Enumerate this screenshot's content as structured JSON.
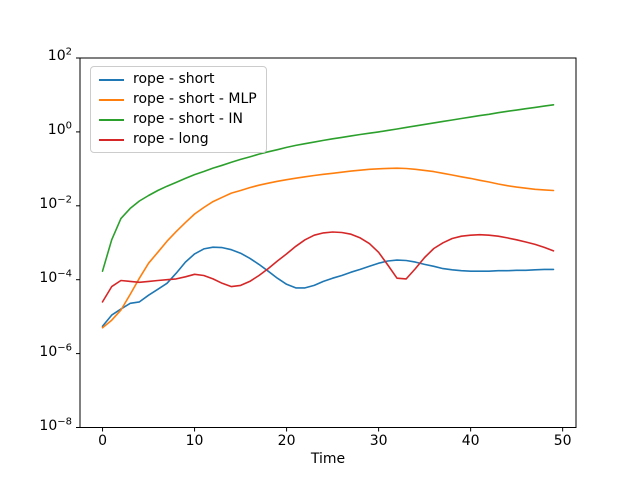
{
  "figure": {
    "background": "#ffffff",
    "spine_color": "#000000",
    "tick_color": "#000000",
    "text_color": "#000000",
    "legend_border_color": "#cccccc"
  },
  "chart_data": {
    "type": "line",
    "title": "",
    "xlabel": "Time",
    "ylabel": "",
    "x_scale": "linear",
    "y_scale": "log",
    "xlim": [
      -2.45,
      51.45
    ],
    "ylim_exponents": [
      -8,
      2
    ],
    "x_ticks": [
      0,
      10,
      20,
      30,
      40,
      50
    ],
    "y_tick_exponents": [
      2,
      0,
      -2,
      -4,
      -6,
      -8
    ],
    "grid": false,
    "legend_position": "upper left",
    "x": [
      0,
      1,
      2,
      3,
      4,
      5,
      6,
      7,
      8,
      9,
      10,
      11,
      12,
      13,
      14,
      15,
      16,
      17,
      18,
      19,
      20,
      21,
      22,
      23,
      24,
      25,
      26,
      27,
      28,
      29,
      30,
      31,
      32,
      33,
      34,
      35,
      36,
      37,
      38,
      39,
      40,
      41,
      42,
      43,
      44,
      45,
      46,
      47,
      48,
      49
    ],
    "series": [
      {
        "name": "rope - short",
        "color": "#1f77b4",
        "values": [
          5.5e-06,
          1.1e-05,
          1.6e-05,
          2.3e-05,
          2.5e-05,
          3.8e-05,
          5.5e-05,
          8e-05,
          0.00015,
          0.0003,
          0.0005,
          0.00068,
          0.00076,
          0.00074,
          0.00065,
          0.00052,
          0.00038,
          0.00026,
          0.00017,
          0.00011,
          7.5e-05,
          6e-05,
          6e-05,
          7e-05,
          9e-05,
          0.00011,
          0.00013,
          0.00016,
          0.00019,
          0.00023,
          0.00028,
          0.00032,
          0.00034,
          0.00033,
          0.0003,
          0.00026,
          0.00023,
          0.0002,
          0.000185,
          0.000175,
          0.00017,
          0.00017,
          0.00017,
          0.000175,
          0.000175,
          0.00018,
          0.00018,
          0.000185,
          0.00019,
          0.00019
        ]
      },
      {
        "name": "rope - short - MLP",
        "color": "#ff7f0e",
        "values": [
          5e-06,
          8e-06,
          1.5e-05,
          4e-05,
          0.00011,
          0.00028,
          0.00055,
          0.0011,
          0.002,
          0.0035,
          0.006,
          0.009,
          0.013,
          0.017,
          0.022,
          0.026,
          0.031,
          0.036,
          0.041,
          0.046,
          0.051,
          0.056,
          0.061,
          0.066,
          0.071,
          0.076,
          0.081,
          0.087,
          0.092,
          0.097,
          0.1,
          0.103,
          0.104,
          0.102,
          0.097,
          0.091,
          0.084,
          0.076,
          0.068,
          0.061,
          0.055,
          0.049,
          0.044,
          0.039,
          0.035,
          0.032,
          0.03,
          0.028,
          0.027,
          0.026
        ]
      },
      {
        "name": "rope - short - IN",
        "color": "#2ca02c",
        "values": [
          0.00017,
          0.0012,
          0.0045,
          0.0085,
          0.0135,
          0.019,
          0.026,
          0.034,
          0.043,
          0.055,
          0.07,
          0.085,
          0.105,
          0.125,
          0.15,
          0.18,
          0.21,
          0.25,
          0.29,
          0.33,
          0.38,
          0.43,
          0.48,
          0.53,
          0.59,
          0.65,
          0.71,
          0.78,
          0.85,
          0.92,
          1.0,
          1.1,
          1.2,
          1.32,
          1.45,
          1.6,
          1.75,
          1.92,
          2.1,
          2.3,
          2.52,
          2.76,
          3.0,
          3.3,
          3.6,
          3.9,
          4.25,
          4.6,
          5.0,
          5.4
        ]
      },
      {
        "name": "rope - long",
        "color": "#d62728",
        "values": [
          2.5e-05,
          6.5e-05,
          9.5e-05,
          9e-05,
          8.5e-05,
          9e-05,
          9.5e-05,
          0.0001,
          0.000105,
          0.00012,
          0.00014,
          0.00013,
          0.000105,
          8e-05,
          6.5e-05,
          7e-05,
          9e-05,
          0.00013,
          0.0002,
          0.00032,
          0.0005,
          0.0008,
          0.0012,
          0.0016,
          0.00185,
          0.00195,
          0.0019,
          0.0017,
          0.00135,
          0.00095,
          0.00055,
          0.00025,
          0.00011,
          0.000105,
          0.0002,
          0.0004,
          0.0007,
          0.001,
          0.0013,
          0.0015,
          0.0016,
          0.00165,
          0.0016,
          0.0015,
          0.00135,
          0.0012,
          0.00105,
          0.0009,
          0.00075,
          0.0006
        ]
      }
    ]
  }
}
